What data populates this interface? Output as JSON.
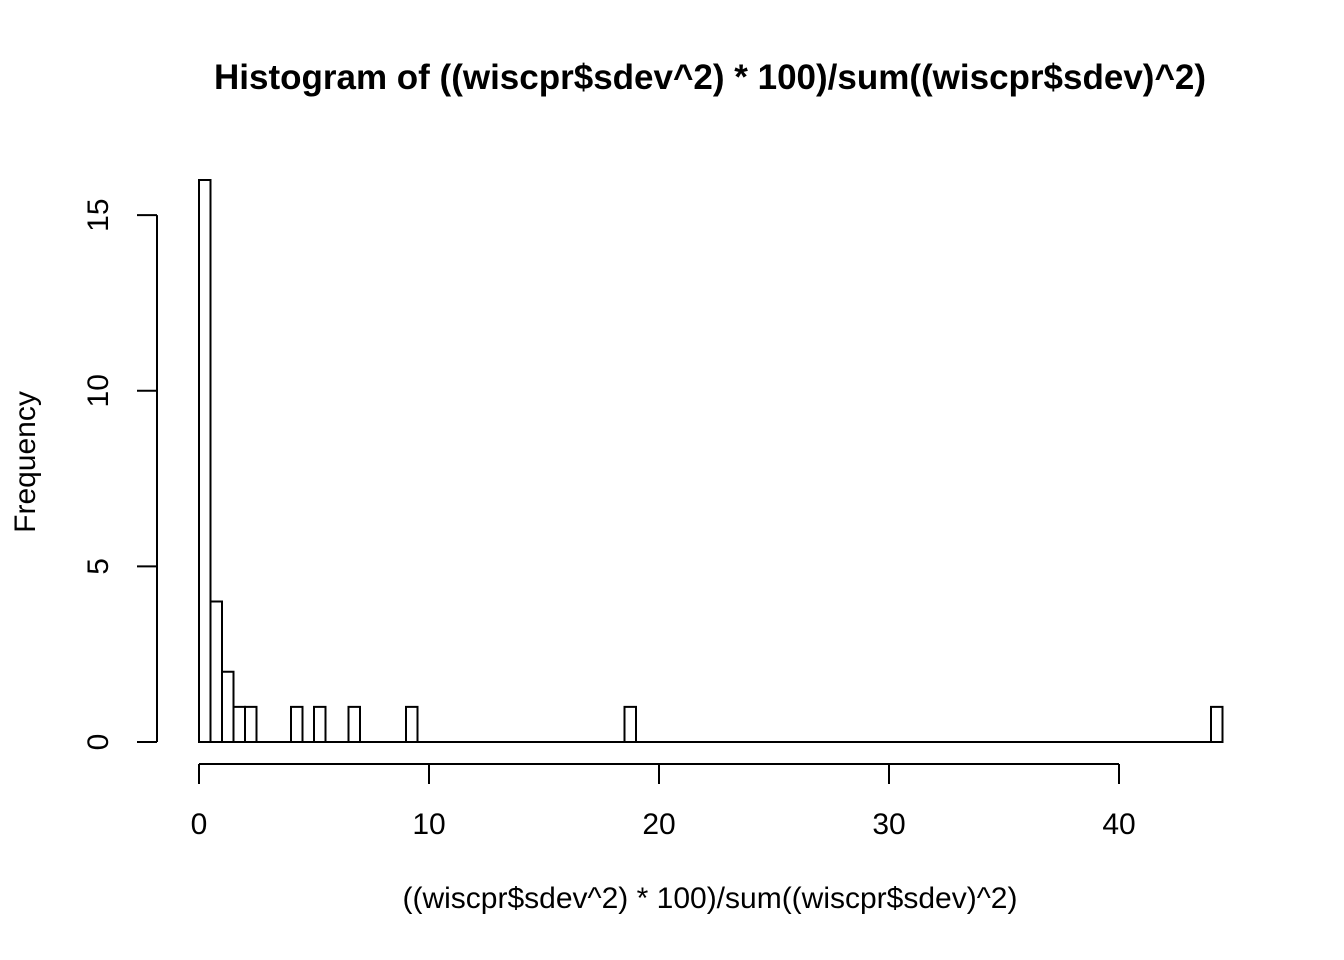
{
  "chart_data": {
    "type": "bar",
    "subtype": "histogram",
    "title": "Histogram of ((wiscpr$sdev^2) * 100)/sum((wiscpr$sdev)^2)",
    "xlabel": "((wiscpr$sdev^2) * 100)/sum((wiscpr$sdev)^2)",
    "ylabel": "Frequency",
    "xlim": [
      0,
      44.5
    ],
    "ylim": [
      0,
      16
    ],
    "x_ticks": [
      0,
      10,
      20,
      30,
      40
    ],
    "y_ticks": [
      0,
      5,
      10,
      15
    ],
    "bin_width": 0.5,
    "bins": [
      {
        "start": 0.0,
        "end": 0.5,
        "count": 16
      },
      {
        "start": 0.5,
        "end": 1.0,
        "count": 4
      },
      {
        "start": 1.0,
        "end": 1.5,
        "count": 2
      },
      {
        "start": 1.5,
        "end": 2.0,
        "count": 1
      },
      {
        "start": 2.0,
        "end": 2.5,
        "count": 1
      },
      {
        "start": 4.0,
        "end": 4.5,
        "count": 1
      },
      {
        "start": 5.0,
        "end": 5.5,
        "count": 1
      },
      {
        "start": 6.5,
        "end": 7.0,
        "count": 1
      },
      {
        "start": 9.0,
        "end": 9.5,
        "count": 1
      },
      {
        "start": 18.5,
        "end": 19.0,
        "count": 1
      },
      {
        "start": 44.0,
        "end": 44.5,
        "count": 1
      }
    ],
    "bar_fill": "#ffffff",
    "bar_stroke": "#000000",
    "grid": false,
    "legend": "none"
  }
}
